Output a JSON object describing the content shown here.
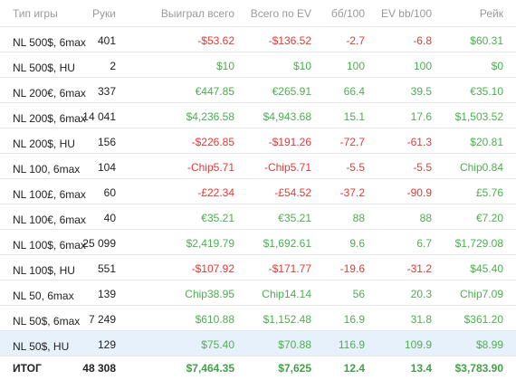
{
  "colors": {
    "positive": "#4caf50",
    "negative": "#e53935",
    "header_text": "#9a9a9a",
    "highlight_row": "#e7f1fb"
  },
  "headers": {
    "game": "Тип игры",
    "hands": "Руки",
    "won": "Выиграл всего",
    "ev": "Всего по EV",
    "bb": "бб/100",
    "evbb": "EV bb/100",
    "rake": "Рейк"
  },
  "rows": [
    {
      "game": "NL 500$, 6max",
      "hands": "401",
      "won": "-$53.62",
      "won_sign": "neg",
      "ev": "-$136.52",
      "ev_sign": "neg",
      "bb": "-2.7",
      "bb_sign": "neg",
      "evbb": "-6.8",
      "evbb_sign": "neg",
      "rake": "$60.31"
    },
    {
      "game": "NL 500$, HU",
      "hands": "2",
      "won": "$10",
      "won_sign": "pos",
      "ev": "$10",
      "ev_sign": "pos",
      "bb": "100",
      "bb_sign": "pos",
      "evbb": "100",
      "evbb_sign": "pos",
      "rake": "$0"
    },
    {
      "game": "NL 200€, 6max",
      "hands": "337",
      "won": "€447.85",
      "won_sign": "pos",
      "ev": "€265.91",
      "ev_sign": "pos",
      "bb": "66.4",
      "bb_sign": "pos",
      "evbb": "39.5",
      "evbb_sign": "pos",
      "rake": "€35.10"
    },
    {
      "game": "NL 200$, 6max",
      "hands": "14 041",
      "won": "$4,236.58",
      "won_sign": "pos",
      "ev": "$4,943.68",
      "ev_sign": "pos",
      "bb": "15.1",
      "bb_sign": "pos",
      "evbb": "17.6",
      "evbb_sign": "pos",
      "rake": "$1,503.52"
    },
    {
      "game": "NL 200$, HU",
      "hands": "156",
      "won": "-$226.85",
      "won_sign": "neg",
      "ev": "-$191.26",
      "ev_sign": "neg",
      "bb": "-72.7",
      "bb_sign": "neg",
      "evbb": "-61.3",
      "evbb_sign": "neg",
      "rake": "$20.81"
    },
    {
      "game": "NL 100, 6max",
      "hands": "104",
      "won": "-Chip5.71",
      "won_sign": "neg",
      "ev": "-Chip5.71",
      "ev_sign": "neg",
      "bb": "-5.5",
      "bb_sign": "neg",
      "evbb": "-5.5",
      "evbb_sign": "neg",
      "rake": "Chip0.84"
    },
    {
      "game": "NL 100£, 6max",
      "hands": "60",
      "won": "-£22.34",
      "won_sign": "neg",
      "ev": "-£54.52",
      "ev_sign": "neg",
      "bb": "-37.2",
      "bb_sign": "neg",
      "evbb": "-90.9",
      "evbb_sign": "neg",
      "rake": "£5.76"
    },
    {
      "game": "NL 100€, 6max",
      "hands": "40",
      "won": "€35.21",
      "won_sign": "pos",
      "ev": "€35.21",
      "ev_sign": "pos",
      "bb": "88",
      "bb_sign": "pos",
      "evbb": "88",
      "evbb_sign": "pos",
      "rake": "€7.20"
    },
    {
      "game": "NL 100$, 6max",
      "hands": "25 099",
      "won": "$2,419.79",
      "won_sign": "pos",
      "ev": "$1,692.61",
      "ev_sign": "pos",
      "bb": "9.6",
      "bb_sign": "pos",
      "evbb": "6.7",
      "evbb_sign": "pos",
      "rake": "$1,729.08"
    },
    {
      "game": "NL 100$, HU",
      "hands": "551",
      "won": "-$107.92",
      "won_sign": "neg",
      "ev": "-$171.77",
      "ev_sign": "neg",
      "bb": "-19.6",
      "bb_sign": "neg",
      "evbb": "-31.2",
      "evbb_sign": "neg",
      "rake": "$45.40"
    },
    {
      "game": "NL 50, 6max",
      "hands": "139",
      "won": "Chip38.95",
      "won_sign": "pos",
      "ev": "Chip14.14",
      "ev_sign": "pos",
      "bb": "56",
      "bb_sign": "pos",
      "evbb": "20.3",
      "evbb_sign": "pos",
      "rake": "Chip7.09"
    },
    {
      "game": "NL 50$, 6max",
      "hands": "7 249",
      "won": "$610.88",
      "won_sign": "pos",
      "ev": "$1,152.48",
      "ev_sign": "pos",
      "bb": "16.9",
      "bb_sign": "pos",
      "evbb": "31.8",
      "evbb_sign": "pos",
      "rake": "$361.20"
    },
    {
      "game": "NL 50$, HU",
      "hands": "129",
      "won": "$75.40",
      "won_sign": "pos",
      "ev": "$70.88",
      "ev_sign": "pos",
      "bb": "116.9",
      "bb_sign": "pos",
      "evbb": "109.9",
      "evbb_sign": "pos",
      "rake": "$8.99",
      "highlighted": true
    }
  ],
  "total": {
    "game": "ИТОГ",
    "hands": "48 308",
    "won": "$7,464.35",
    "ev": "$7,625",
    "bb": "12.4",
    "evbb": "13.4",
    "rake": "$3,783.90"
  }
}
